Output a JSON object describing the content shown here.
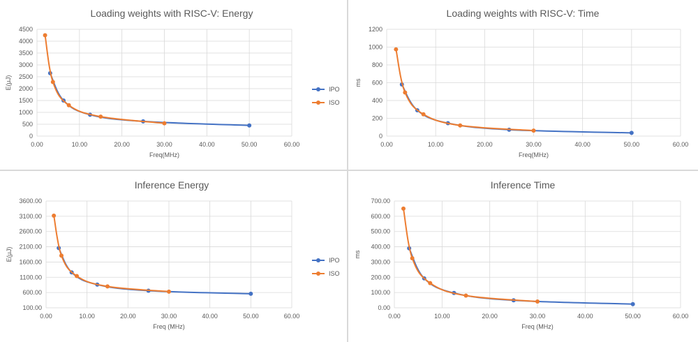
{
  "colors": {
    "IPO": "#4472c4",
    "ISO": "#ed7d31"
  },
  "chart_data": [
    {
      "type": "line",
      "title": "Loading weights with RISC-V: Energy",
      "xlabel": "Freq(MHz)",
      "ylabel": "E(µJ)",
      "xlim": [
        0,
        60
      ],
      "ylim": [
        0,
        4500
      ],
      "xticks": [
        "0.00",
        "10.00",
        "20.00",
        "30.00",
        "40.00",
        "50.00",
        "60.00"
      ],
      "yticks": [
        "0",
        "500",
        "1000",
        "1500",
        "2000",
        "2500",
        "3000",
        "3500",
        "4000",
        "4500"
      ],
      "legend": "right",
      "series": [
        {
          "name": "IPO",
          "x": [
            3.1,
            6.25,
            12.5,
            25,
            50
          ],
          "y": [
            2650,
            1500,
            900,
            620,
            450
          ]
        },
        {
          "name": "ISO",
          "x": [
            1.9,
            3.75,
            7.5,
            15,
            30
          ],
          "y": [
            4250,
            2280,
            1300,
            820,
            540
          ]
        }
      ]
    },
    {
      "type": "line",
      "title": "Loading weights with RISC-V: Time",
      "xlabel": "Freq(MHz)",
      "ylabel": "ms",
      "xlim": [
        0,
        60
      ],
      "ylim": [
        0,
        1200
      ],
      "xticks": [
        "0.00",
        "10.00",
        "20.00",
        "30.00",
        "40.00",
        "50.00",
        "60.00"
      ],
      "yticks": [
        "0",
        "200",
        "400",
        "600",
        "800",
        "1000",
        "1200"
      ],
      "legend": "none",
      "series": [
        {
          "name": "IPO",
          "x": [
            3.1,
            6.25,
            12.5,
            25,
            50
          ],
          "y": [
            580,
            290,
            145,
            72,
            36
          ]
        },
        {
          "name": "ISO",
          "x": [
            1.9,
            3.75,
            7.5,
            15,
            30
          ],
          "y": [
            975,
            490,
            245,
            120,
            62
          ]
        }
      ]
    },
    {
      "type": "line",
      "title": "Inference Energy",
      "xlabel": "Freq (MHz)",
      "ylabel": "E(µJ)",
      "xlim": [
        0,
        60
      ],
      "ylim": [
        100,
        3600
      ],
      "xticks": [
        "0.00",
        "10.00",
        "20.00",
        "30.00",
        "40.00",
        "50.00",
        "60.00"
      ],
      "yticks": [
        "100.00",
        "600.00",
        "1100.00",
        "1600.00",
        "2100.00",
        "2600.00",
        "3100.00",
        "3600.00"
      ],
      "legend": "right",
      "series": [
        {
          "name": "IPO",
          "x": [
            3.1,
            6.25,
            12.5,
            25,
            50
          ],
          "y": [
            2060,
            1260,
            860,
            660,
            560
          ]
        },
        {
          "name": "ISO",
          "x": [
            1.9,
            3.75,
            7.5,
            15,
            30
          ],
          "y": [
            3120,
            1810,
            1140,
            800,
            630
          ]
        }
      ]
    },
    {
      "type": "line",
      "title": "Inference Time",
      "xlabel": "Freq (MHz)",
      "ylabel": "ms",
      "xlim": [
        0,
        60
      ],
      "ylim": [
        0,
        700
      ],
      "xticks": [
        "0.00",
        "10.00",
        "20.00",
        "30.00",
        "40.00",
        "50.00",
        "60.00"
      ],
      "yticks": [
        "0.00",
        "100.00",
        "200.00",
        "300.00",
        "400.00",
        "500.00",
        "600.00",
        "700.00"
      ],
      "legend": "none",
      "series": [
        {
          "name": "IPO",
          "x": [
            3.1,
            6.25,
            12.5,
            25,
            50
          ],
          "y": [
            390,
            193,
            97,
            49,
            24
          ]
        },
        {
          "name": "ISO",
          "x": [
            1.9,
            3.75,
            7.5,
            15,
            30
          ],
          "y": [
            650,
            325,
            162,
            80,
            41
          ]
        }
      ]
    }
  ]
}
